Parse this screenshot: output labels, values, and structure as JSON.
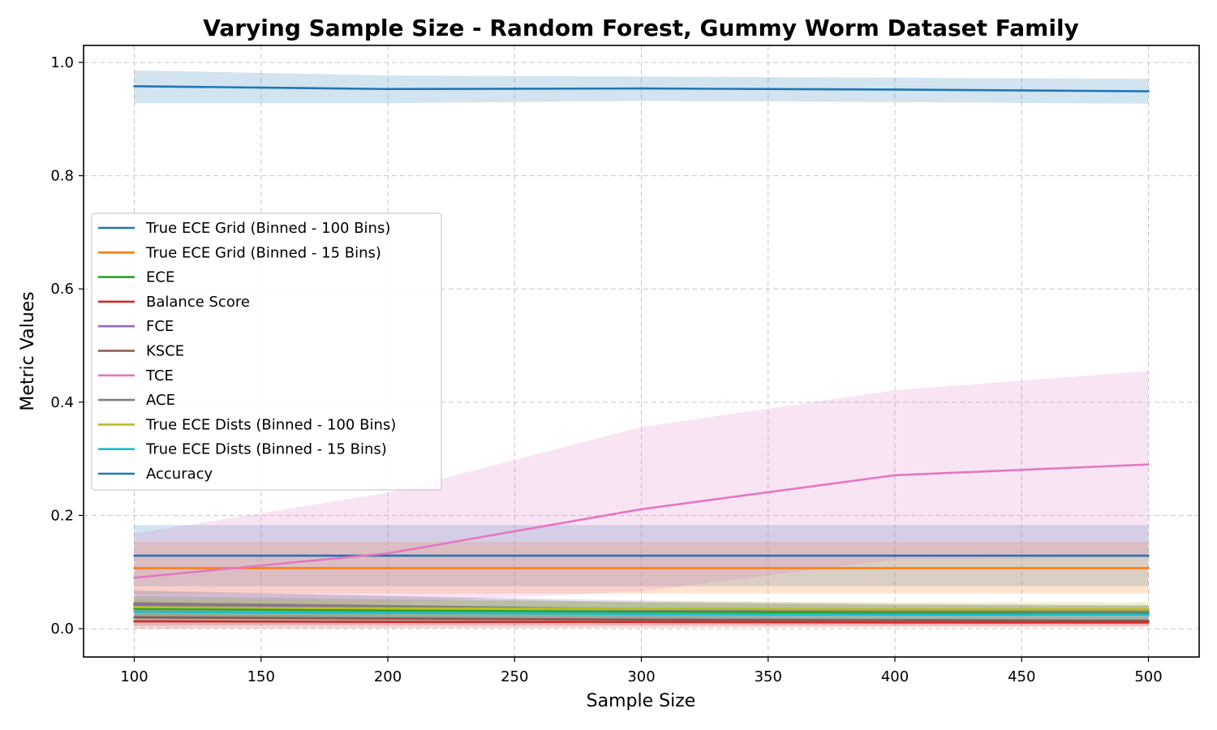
{
  "chart_data": {
    "type": "line",
    "title": "Varying Sample Size - Random Forest, Gummy Worm Dataset Family",
    "xlabel": "Sample Size",
    "ylabel": "Metric Values",
    "x": [
      100,
      200,
      300,
      400,
      500
    ],
    "xlim": [
      80,
      520
    ],
    "ylim": [
      -0.05,
      1.03
    ],
    "xticks": [
      100,
      150,
      200,
      250,
      300,
      350,
      400,
      450,
      500
    ],
    "xtick_labels": [
      "100",
      "150",
      "200",
      "250",
      "300",
      "350",
      "400",
      "450",
      "500"
    ],
    "yticks": [
      0.0,
      0.2,
      0.4,
      0.6,
      0.8,
      1.0
    ],
    "ytick_labels": [
      "0.0",
      "0.2",
      "0.4",
      "0.6",
      "0.8",
      "1.0"
    ],
    "grid": true,
    "legend_position": "center-left",
    "series": [
      {
        "name": "True ECE Grid (Binned - 100 Bins)",
        "color": "#1f77b4",
        "values": [
          0.129,
          0.129,
          0.129,
          0.129,
          0.129
        ],
        "lower": [
          0.075,
          0.075,
          0.075,
          0.075,
          0.075
        ],
        "upper": [
          0.183,
          0.183,
          0.183,
          0.183,
          0.183
        ]
      },
      {
        "name": "True ECE Grid (Binned - 15 Bins)",
        "color": "#ff7f0e",
        "values": [
          0.107,
          0.107,
          0.107,
          0.107,
          0.107
        ],
        "lower": [
          0.062,
          0.062,
          0.062,
          0.062,
          0.062
        ],
        "upper": [
          0.153,
          0.153,
          0.153,
          0.153,
          0.153
        ]
      },
      {
        "name": "ECE",
        "color": "#2ca02c",
        "values": [
          0.035,
          0.032,
          0.03,
          0.028,
          0.027
        ],
        "lower": [
          0.012,
          0.012,
          0.013,
          0.013,
          0.013
        ],
        "upper": [
          0.058,
          0.052,
          0.047,
          0.043,
          0.041
        ]
      },
      {
        "name": "Balance Score",
        "color": "#d62728",
        "values": [
          0.013,
          0.012,
          0.012,
          0.011,
          0.011
        ],
        "lower": [
          0.0,
          0.001,
          0.002,
          0.003,
          0.003
        ],
        "upper": [
          0.026,
          0.023,
          0.022,
          0.019,
          0.019
        ]
      },
      {
        "name": "FCE",
        "color": "#9467bd",
        "values": [
          0.042,
          0.038,
          0.034,
          0.031,
          0.03
        ],
        "lower": [
          0.018,
          0.018,
          0.018,
          0.018,
          0.018
        ],
        "upper": [
          0.066,
          0.058,
          0.05,
          0.044,
          0.042
        ]
      },
      {
        "name": "KSCE",
        "color": "#8c564b",
        "values": [
          0.02,
          0.018,
          0.016,
          0.015,
          0.014
        ],
        "lower": [
          0.005,
          0.006,
          0.006,
          0.006,
          0.006
        ],
        "upper": [
          0.035,
          0.03,
          0.026,
          0.024,
          0.022
        ]
      },
      {
        "name": "TCE",
        "color": "#e377c2",
        "values": [
          0.09,
          0.133,
          0.211,
          0.271,
          0.29
        ],
        "lower": [
          0.028,
          0.045,
          0.066,
          0.122,
          0.125
        ],
        "upper": [
          0.168,
          0.24,
          0.356,
          0.421,
          0.455
        ]
      },
      {
        "name": "ACE",
        "color": "#7f7f7f",
        "values": [
          0.045,
          0.04,
          0.034,
          0.031,
          0.03
        ],
        "lower": [
          0.022,
          0.022,
          0.022,
          0.022,
          0.022
        ],
        "upper": [
          0.068,
          0.058,
          0.046,
          0.041,
          0.04
        ]
      },
      {
        "name": "True ECE Dists (Binned - 100 Bins)",
        "color": "#bcbd22",
        "values": [
          0.038,
          0.036,
          0.035,
          0.034,
          0.034
        ],
        "lower": [
          0.022,
          0.022,
          0.022,
          0.022,
          0.022
        ],
        "upper": [
          0.054,
          0.05,
          0.048,
          0.047,
          0.047
        ]
      },
      {
        "name": "True ECE Dists (Binned - 15 Bins)",
        "color": "#17becf",
        "values": [
          0.03,
          0.028,
          0.026,
          0.025,
          0.025
        ],
        "lower": [
          0.015,
          0.015,
          0.015,
          0.015,
          0.015
        ],
        "upper": [
          0.045,
          0.041,
          0.038,
          0.036,
          0.036
        ]
      },
      {
        "name": "Accuracy",
        "color": "#1f77b4",
        "values": [
          0.958,
          0.953,
          0.954,
          0.952,
          0.949
        ],
        "lower": [
          0.928,
          0.928,
          0.932,
          0.93,
          0.927
        ],
        "upper": [
          0.986,
          0.977,
          0.975,
          0.973,
          0.971
        ]
      }
    ]
  }
}
